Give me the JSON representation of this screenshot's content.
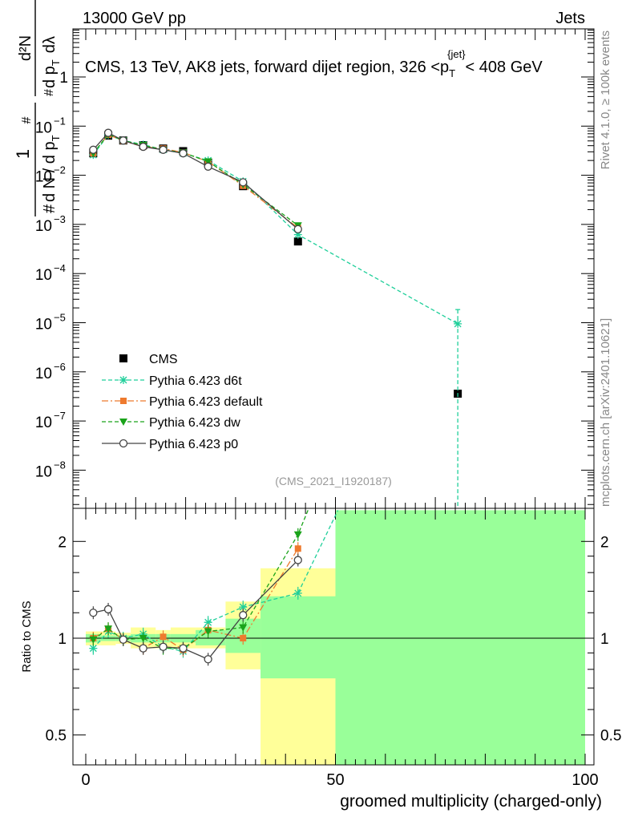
{
  "header": {
    "left": "13000 GeV pp",
    "right": "Jets"
  },
  "side_labels": {
    "rivet": "Rivet 4.1.0, ≥ 100k events",
    "mcplots": "mcplots.cern.ch [arXiv:2401.10621]"
  },
  "analysis_id": "(CMS_2021_I1920187)",
  "colors": {
    "cms": "#000000",
    "d6t": "#1fcf9a",
    "default": "#ee7a2e",
    "dw": "#1aa31a",
    "p0": "#444444",
    "band_inner": "#99ff99",
    "band_outer": "#ffff99"
  },
  "chart_data": [
    {
      "type": "line",
      "title_parts": {
        "main": "CMS, 13 TeV, AK8 jets, forward dijet region, 326 <",
        "p": "p",
        "sub": "T",
        "sup": "{jet}",
        "tail": "< 408 GeV"
      },
      "ylabel_parts": {
        "num1": "1",
        "den1": "d N / d p",
        "den1_sub": "T",
        "den1_hash": "#",
        "hash": "#",
        "num2": "d²N",
        "den2": "d p",
        "den2_sub": "T",
        "den2_tail": "dλ",
        "den2_hash": "#"
      },
      "yscale": "log",
      "ylim": [
        2e-09,
        10
      ],
      "xlim": [
        -4,
        100
      ],
      "ytick_labels": [
        "1",
        "10",
        "10",
        "10",
        "10",
        "10",
        "10",
        "10",
        "10"
      ],
      "ytick_exponents": [
        "",
        "−1",
        "−2",
        "−3",
        "−4",
        "−5",
        "−6",
        "−7",
        "−8"
      ],
      "legend": [
        "CMS",
        "Pythia 6.423 d6t",
        "Pythia 6.423 default",
        "Pythia 6.423 dw",
        "Pythia 6.423 p0"
      ],
      "series": [
        {
          "name": "CMS",
          "x": [
            1.5,
            4.5,
            7.5,
            11.5,
            15.5,
            19.5,
            24.5,
            31.5,
            42.5,
            74.5
          ],
          "y": [
            0.028,
            0.064,
            0.051,
            0.041,
            0.035,
            0.031,
            0.018,
            0.006,
            0.00045,
            3.6e-07
          ],
          "yerr_low": [
            0,
            0,
            0,
            0,
            0,
            0,
            0,
            0,
            0,
            0
          ],
          "yerr_high": [
            0,
            0,
            0,
            0,
            0,
            0,
            0,
            0,
            0,
            0
          ]
        },
        {
          "name": "Pythia 6.423 d6t",
          "x": [
            1.5,
            4.5,
            7.5,
            11.5,
            15.5,
            19.5,
            24.5,
            31.5,
            42.5,
            74.5
          ],
          "y": [
            0.026,
            0.066,
            0.051,
            0.042,
            0.033,
            0.028,
            0.02,
            0.0075,
            0.00062,
            9.5e-06
          ],
          "yerr_low": [
            0,
            0,
            0,
            0,
            0,
            0,
            0,
            0,
            0,
            9.49e-06
          ],
          "yerr_high": [
            0,
            0,
            0,
            0,
            0,
            0,
            0,
            0,
            0,
            9e-06
          ]
        },
        {
          "name": "Pythia 6.423 default",
          "x": [
            1.5,
            4.5,
            7.5,
            11.5,
            15.5,
            19.5,
            24.5,
            31.5,
            42.5
          ],
          "y": [
            0.028,
            0.067,
            0.05,
            0.038,
            0.035,
            0.029,
            0.019,
            0.0061,
            0.00085
          ]
        },
        {
          "name": "Pythia 6.423 dw",
          "x": [
            1.5,
            4.5,
            7.5,
            11.5,
            15.5,
            19.5,
            24.5,
            31.5,
            42.5
          ],
          "y": [
            0.028,
            0.068,
            0.051,
            0.041,
            0.033,
            0.029,
            0.019,
            0.0065,
            0.00095
          ]
        },
        {
          "name": "Pythia 6.423 p0",
          "x": [
            1.5,
            4.5,
            7.5,
            11.5,
            15.5,
            19.5,
            24.5,
            31.5,
            42.5
          ],
          "y": [
            0.033,
            0.073,
            0.051,
            0.038,
            0.033,
            0.028,
            0.015,
            0.0072,
            0.0008
          ]
        }
      ]
    },
    {
      "type": "line",
      "ylabel": "Ratio to CMS",
      "xlabel": "groomed multiplicity (charged-only)",
      "yscale": "log",
      "ylim": [
        0.4,
        2.5
      ],
      "xlim": [
        -4,
        100
      ],
      "yticks": [
        0.5,
        1,
        2
      ],
      "ytick_labels": [
        "0.5",
        "1",
        "2"
      ],
      "xticks": [
        0,
        50,
        100
      ],
      "xtick_labels": [
        "0",
        "50",
        "100"
      ],
      "bands": [
        {
          "x0": 0,
          "x1": 3,
          "inner": [
            0.97,
            1.03
          ],
          "outer": [
            0.95,
            1.05
          ]
        },
        {
          "x0": 3,
          "x1": 6,
          "inner": [
            0.98,
            1.02
          ],
          "outer": [
            0.95,
            1.05
          ]
        },
        {
          "x0": 6,
          "x1": 9,
          "inner": [
            0.98,
            1.02
          ],
          "outer": [
            0.96,
            1.04
          ]
        },
        {
          "x0": 9,
          "x1": 14,
          "inner": [
            0.97,
            1.03
          ],
          "outer": [
            0.93,
            1.08
          ]
        },
        {
          "x0": 14,
          "x1": 17,
          "inner": [
            0.97,
            1.03
          ],
          "outer": [
            0.93,
            1.06
          ]
        },
        {
          "x0": 17,
          "x1": 22,
          "inner": [
            0.97,
            1.03
          ],
          "outer": [
            0.93,
            1.08
          ]
        },
        {
          "x0": 22,
          "x1": 28,
          "inner": [
            0.95,
            1.06
          ],
          "outer": [
            0.93,
            1.08
          ]
        },
        {
          "x0": 28,
          "x1": 35,
          "inner": [
            0.9,
            1.15
          ],
          "outer": [
            0.8,
            1.3
          ]
        },
        {
          "x0": 35,
          "x1": 50,
          "inner": [
            0.75,
            1.35
          ],
          "outer": [
            0.37,
            1.65
          ]
        },
        {
          "x0": 50,
          "x1": 100,
          "inner": [
            0.37,
            2.5
          ],
          "outer": [
            0.37,
            2.5
          ]
        }
      ],
      "series": [
        {
          "name": "Pythia 6.423 d6t",
          "x": [
            1.5,
            4.5,
            7.5,
            11.5,
            15.5,
            19.5,
            24.5,
            31.5,
            42.5,
            50.5
          ],
          "y": [
            0.93,
            1.05,
            1.0,
            1.03,
            0.94,
            0.91,
            1.12,
            1.25,
            1.38,
            2.5
          ]
        },
        {
          "name": "Pythia 6.423 default",
          "x": [
            1.5,
            4.5,
            7.5,
            11.5,
            15.5,
            19.5,
            24.5,
            31.5,
            42.5
          ],
          "y": [
            1.0,
            1.07,
            0.99,
            0.93,
            1.01,
            0.92,
            1.06,
            1.0,
            1.9
          ]
        },
        {
          "name": "Pythia 6.423 dw",
          "x": [
            1.5,
            4.5,
            7.5,
            11.5,
            15.5,
            19.5,
            24.5,
            31.5,
            42.5,
            44.5
          ],
          "y": [
            0.99,
            1.07,
            0.99,
            1.0,
            0.93,
            0.93,
            1.05,
            1.08,
            2.1,
            2.5
          ]
        },
        {
          "name": "Pythia 6.423 p0",
          "x": [
            1.5,
            4.5,
            7.5,
            11.5,
            15.5,
            19.5,
            24.5,
            31.5,
            42.5
          ],
          "y": [
            1.2,
            1.23,
            0.99,
            0.93,
            0.94,
            0.93,
            0.86,
            1.18,
            1.75
          ]
        }
      ]
    }
  ]
}
